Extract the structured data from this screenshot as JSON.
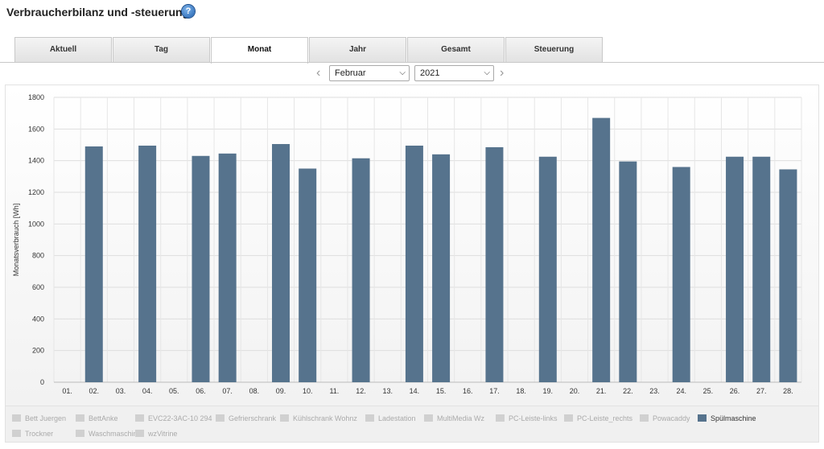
{
  "header": {
    "title": "Verbraucherbilanz und -steuerung",
    "help_icon": "?"
  },
  "tabs": [
    "Aktuell",
    "Tag",
    "Monat",
    "Jahr",
    "Gesamt",
    "Steuerung"
  ],
  "active_tab": "Monat",
  "period": {
    "month": "Februar",
    "year": "2021"
  },
  "colors": {
    "bar": "#56738d",
    "legend_inactive": "#d0d0d0"
  },
  "chart_data": {
    "type": "bar",
    "title": "",
    "xlabel": "",
    "ylabel": "Monatsverbrauch [Wh]",
    "ylim": [
      0,
      1800
    ],
    "yticks": [
      0,
      200,
      400,
      600,
      800,
      1000,
      1200,
      1400,
      1600,
      1800
    ],
    "grid": true,
    "categories": [
      "01.",
      "02.",
      "03.",
      "04.",
      "05.",
      "06.",
      "07.",
      "08.",
      "09.",
      "10.",
      "11.",
      "12.",
      "13.",
      "14.",
      "15.",
      "16.",
      "17.",
      "18.",
      "19.",
      "20.",
      "21.",
      "22.",
      "23.",
      "24.",
      "25.",
      "26.",
      "27.",
      "28."
    ],
    "series": [
      {
        "name": "Spülmaschine",
        "values": [
          0,
          1490,
          0,
          1495,
          0,
          1430,
          1445,
          0,
          1505,
          1350,
          0,
          1415,
          0,
          1495,
          1440,
          0,
          1485,
          0,
          1425,
          0,
          1670,
          1395,
          0,
          1360,
          0,
          1425,
          1425,
          1345
        ]
      }
    ]
  },
  "legend": [
    {
      "label": "Bett Juergen",
      "active": false
    },
    {
      "label": "BettAnke",
      "active": false
    },
    {
      "label": "EVC22-3AC-10 294",
      "active": false
    },
    {
      "label": "Gefrierschrank",
      "active": false
    },
    {
      "label": "Kühlschrank Wohnz",
      "active": false
    },
    {
      "label": "Ladestation",
      "active": false
    },
    {
      "label": "MultiMedia Wz",
      "active": false
    },
    {
      "label": "PC-Leiste-links",
      "active": false
    },
    {
      "label": "PC-Leiste_rechts",
      "active": false
    },
    {
      "label": "Powacaddy",
      "active": false
    },
    {
      "label": "Spülmaschine",
      "active": true
    },
    {
      "label": "Trockner",
      "active": false
    },
    {
      "label": "Waschmaschine",
      "active": false
    },
    {
      "label": "wzVitrine",
      "active": false
    }
  ]
}
